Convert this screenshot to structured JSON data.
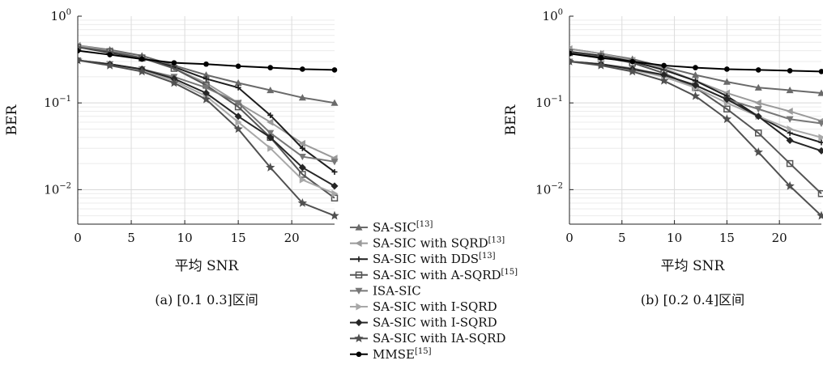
{
  "legend": [
    {
      "label": "SA-SIC",
      "sup": "[13]",
      "color": "#6a6a6a",
      "marker": "triangle"
    },
    {
      "label": "SA-SIC with SQRD",
      "sup": "[13]",
      "color": "#9a9a9a",
      "marker": "tri-left"
    },
    {
      "label": "SA-SIC with DDS",
      "sup": "[13]",
      "color": "#1e1e1e",
      "marker": "plus"
    },
    {
      "label": "SA-SIC with A-SQRD",
      "sup": "[15]",
      "color": "#555555",
      "marker": "square"
    },
    {
      "label": "ISA-SIC",
      "sup": "",
      "color": "#777777",
      "marker": "tri-down"
    },
    {
      "label": "SA-SIC with I-SQRD",
      "sup": "",
      "color": "#a8a8a8",
      "marker": "tri-right"
    },
    {
      "label": "SA-SIC with I-SQRD",
      "sup": "",
      "color": "#262626",
      "marker": "diamond"
    },
    {
      "label": "SA-SIC with IA-SQRD",
      "sup": "",
      "color": "#505050",
      "marker": "star"
    },
    {
      "label": "MMSE",
      "sup": "[15]",
      "color": "#000000",
      "marker": "circle"
    }
  ],
  "chart_data": [
    {
      "type": "line",
      "caption": "(a) [0.1 0.3]区间",
      "xlabel": "平均 SNR",
      "ylabel": "BER",
      "xlim": [
        0,
        24
      ],
      "ylim": [
        0.004,
        1
      ],
      "yscale": "log",
      "xticks": [
        "0",
        "5",
        "10",
        "15",
        "20"
      ],
      "yticks": [
        "10^0",
        "10^-1",
        "10^-2"
      ],
      "grid": true,
      "x": [
        0,
        3,
        6,
        9,
        12,
        15,
        18,
        21,
        24
      ],
      "series": [
        {
          "name": "SA-SIC[13]",
          "values": [
            0.46,
            0.41,
            0.35,
            0.27,
            0.21,
            0.17,
            0.14,
            0.115,
            0.1
          ]
        },
        {
          "name": "SA-SIC with SQRD[13]",
          "values": [
            0.46,
            0.4,
            0.33,
            0.25,
            0.17,
            0.1,
            0.06,
            0.034,
            0.023
          ]
        },
        {
          "name": "SA-SIC with DDS[13]",
          "values": [
            0.44,
            0.38,
            0.33,
            0.26,
            0.19,
            0.15,
            0.072,
            0.03,
            0.016
          ]
        },
        {
          "name": "SA-SIC with A-SQRD[15]",
          "values": [
            0.44,
            0.39,
            0.33,
            0.25,
            0.16,
            0.09,
            0.04,
            0.015,
            0.008
          ]
        },
        {
          "name": "ISA-SIC",
          "values": [
            0.31,
            0.28,
            0.245,
            0.2,
            0.15,
            0.1,
            0.045,
            0.024,
            0.021
          ]
        },
        {
          "name": "SA-SIC with I-SQRD",
          "values": [
            0.31,
            0.28,
            0.24,
            0.18,
            0.12,
            0.06,
            0.03,
            0.013,
            0.009
          ]
        },
        {
          "name": "SA-SIC with I-SQRD",
          "values": [
            0.31,
            0.28,
            0.245,
            0.19,
            0.13,
            0.07,
            0.04,
            0.018,
            0.011
          ]
        },
        {
          "name": "SA-SIC with IA-SQRD",
          "values": [
            0.31,
            0.27,
            0.23,
            0.17,
            0.11,
            0.05,
            0.018,
            0.007,
            0.005
          ]
        },
        {
          "name": "MMSE[15]",
          "values": [
            0.4,
            0.36,
            0.32,
            0.29,
            0.28,
            0.265,
            0.255,
            0.245,
            0.24
          ]
        }
      ]
    },
    {
      "type": "line",
      "caption": "(b) [0.2 0.4]区间",
      "xlabel": "平均 SNR",
      "ylabel": "BER",
      "xlim": [
        0,
        24
      ],
      "ylim": [
        0.004,
        1
      ],
      "yscale": "log",
      "xticks": [
        "0",
        "5",
        "10",
        "15",
        "20"
      ],
      "yticks": [
        "10^0",
        "10^-1",
        "10^-2"
      ],
      "grid": true,
      "x": [
        0,
        3,
        6,
        9,
        12,
        15,
        18,
        21,
        24
      ],
      "series": [
        {
          "name": "SA-SIC[13]",
          "values": [
            0.42,
            0.37,
            0.32,
            0.26,
            0.21,
            0.175,
            0.15,
            0.14,
            0.13
          ]
        },
        {
          "name": "SA-SIC with SQRD[13]",
          "values": [
            0.42,
            0.37,
            0.31,
            0.25,
            0.18,
            0.13,
            0.1,
            0.08,
            0.062
          ]
        },
        {
          "name": "SA-SIC with DDS[13]",
          "values": [
            0.39,
            0.35,
            0.3,
            0.24,
            0.18,
            0.12,
            0.07,
            0.045,
            0.035
          ]
        },
        {
          "name": "SA-SIC with A-SQRD[15]",
          "values": [
            0.38,
            0.34,
            0.29,
            0.22,
            0.15,
            0.085,
            0.045,
            0.02,
            0.009
          ]
        },
        {
          "name": "ISA-SIC",
          "values": [
            0.3,
            0.28,
            0.25,
            0.21,
            0.16,
            0.11,
            0.085,
            0.065,
            0.058
          ]
        },
        {
          "name": "SA-SIC with I-SQRD",
          "values": [
            0.3,
            0.28,
            0.24,
            0.2,
            0.15,
            0.1,
            0.07,
            0.05,
            0.04
          ]
        },
        {
          "name": "SA-SIC with I-SQRD",
          "values": [
            0.3,
            0.28,
            0.245,
            0.21,
            0.16,
            0.11,
            0.07,
            0.037,
            0.028
          ]
        },
        {
          "name": "SA-SIC with IA-SQRD",
          "values": [
            0.3,
            0.27,
            0.23,
            0.18,
            0.12,
            0.065,
            0.027,
            0.011,
            0.005
          ]
        },
        {
          "name": "MMSE[15]",
          "values": [
            0.37,
            0.33,
            0.3,
            0.27,
            0.255,
            0.245,
            0.24,
            0.235,
            0.23
          ]
        }
      ]
    }
  ]
}
